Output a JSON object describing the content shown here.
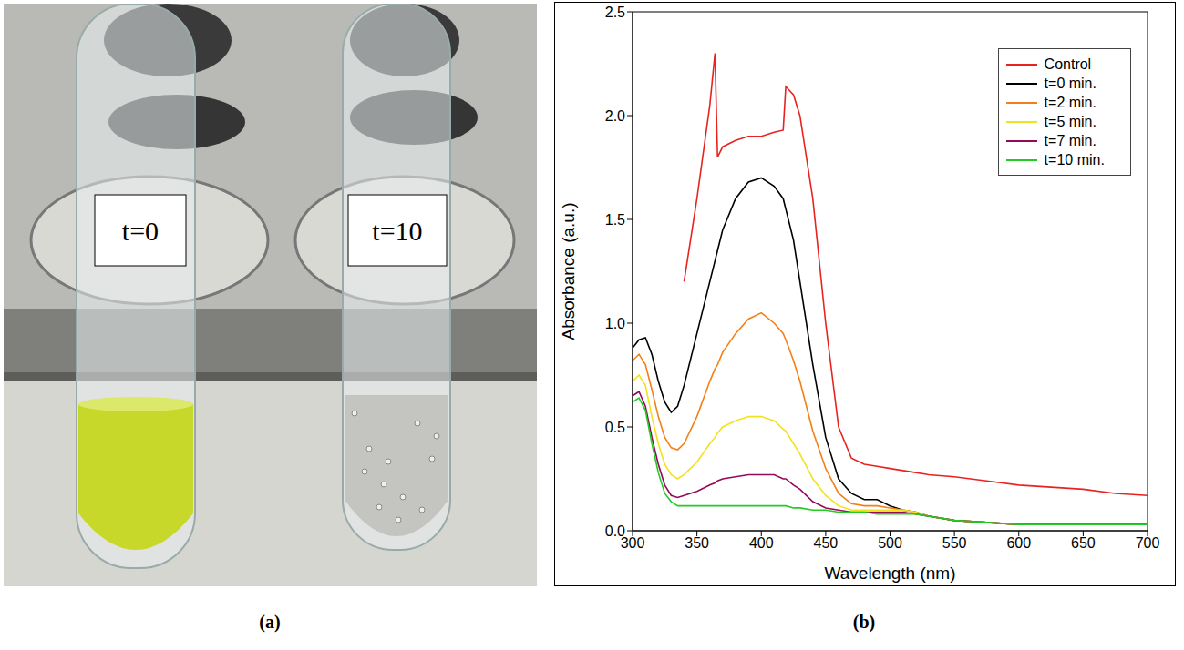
{
  "photo": {
    "panel": "(a)",
    "labels": [
      "t=0",
      "t=10"
    ]
  },
  "chart_data": {
    "panel": "(b)",
    "type": "line",
    "x_label": "Wavelength (nm)",
    "y_label": "Absorbance (a.u.)",
    "xlim": [
      300,
      700
    ],
    "xticks": [
      300,
      350,
      400,
      450,
      500,
      550,
      600,
      650,
      700
    ],
    "ylim": [
      0,
      2.5
    ],
    "yticks": [
      {
        "value": 0,
        "label": "0.0"
      },
      0.5,
      {
        "value": 1,
        "label": "1.0"
      },
      1.5,
      {
        "value": 2,
        "label": "2.0"
      },
      2.5
    ],
    "grid": false,
    "legend": "upper right",
    "x": [
      300,
      305,
      310,
      315,
      320,
      325,
      330,
      335,
      340,
      350,
      360,
      364,
      366,
      370,
      380,
      390,
      400,
      410,
      417,
      419,
      425,
      430,
      440,
      450,
      460,
      470,
      480,
      490,
      500,
      510,
      520,
      530,
      550,
      575,
      600,
      625,
      650,
      675,
      700
    ],
    "series": [
      {
        "name": "Control",
        "color": "#e8231f",
        "values": [
          null,
          null,
          null,
          null,
          null,
          null,
          null,
          null,
          1.2,
          1.6,
          2.05,
          2.3,
          1.8,
          1.85,
          1.88,
          1.9,
          1.9,
          1.92,
          1.93,
          2.14,
          2.1,
          2.0,
          1.6,
          1.0,
          0.5,
          0.35,
          0.32,
          0.31,
          0.3,
          0.29,
          0.28,
          0.27,
          0.26,
          0.24,
          0.22,
          0.21,
          0.2,
          0.18,
          0.17
        ]
      },
      {
        "name": "t=0 min.",
        "color": "#000000",
        "values": [
          0.88,
          0.92,
          0.93,
          0.85,
          0.72,
          0.62,
          0.57,
          0.6,
          0.7,
          0.95,
          1.2,
          1.3,
          1.35,
          1.45,
          1.6,
          1.68,
          1.7,
          1.66,
          1.6,
          1.55,
          1.4,
          1.2,
          0.8,
          0.45,
          0.25,
          0.18,
          0.15,
          0.15,
          0.12,
          0.1,
          0.09,
          0.07,
          0.05,
          0.04,
          0.03,
          0.03,
          0.03,
          0.03,
          0.03
        ]
      },
      {
        "name": "t=2 min.",
        "color": "#f57f17",
        "values": [
          0.82,
          0.85,
          0.8,
          0.68,
          0.55,
          0.45,
          0.4,
          0.39,
          0.42,
          0.55,
          0.72,
          0.78,
          0.8,
          0.86,
          0.95,
          1.02,
          1.05,
          1.0,
          0.95,
          0.92,
          0.82,
          0.72,
          0.48,
          0.3,
          0.18,
          0.13,
          0.12,
          0.12,
          0.11,
          0.1,
          0.09,
          0.07,
          0.05,
          0.04,
          0.03,
          0.03,
          0.03,
          0.03,
          0.03
        ]
      },
      {
        "name": "t=5 min.",
        "color": "#f2e21e",
        "values": [
          0.72,
          0.75,
          0.7,
          0.55,
          0.42,
          0.32,
          0.27,
          0.25,
          0.27,
          0.33,
          0.42,
          0.45,
          0.47,
          0.5,
          0.53,
          0.55,
          0.55,
          0.53,
          0.49,
          0.48,
          0.42,
          0.37,
          0.25,
          0.17,
          0.12,
          0.1,
          0.1,
          0.1,
          0.1,
          0.1,
          0.09,
          0.07,
          0.05,
          0.04,
          0.03,
          0.03,
          0.03,
          0.03,
          0.03
        ]
      },
      {
        "name": "t=7 min.",
        "color": "#94095a",
        "values": [
          0.65,
          0.67,
          0.6,
          0.45,
          0.32,
          0.22,
          0.17,
          0.16,
          0.17,
          0.19,
          0.22,
          0.23,
          0.24,
          0.25,
          0.26,
          0.27,
          0.27,
          0.27,
          0.25,
          0.25,
          0.22,
          0.2,
          0.14,
          0.11,
          0.1,
          0.09,
          0.09,
          0.09,
          0.09,
          0.09,
          0.08,
          0.07,
          0.05,
          0.04,
          0.03,
          0.03,
          0.03,
          0.03,
          0.03
        ]
      },
      {
        "name": "t=10 min.",
        "color": "#22cc22",
        "values": [
          0.62,
          0.64,
          0.58,
          0.42,
          0.28,
          0.18,
          0.14,
          0.12,
          0.12,
          0.12,
          0.12,
          0.12,
          0.12,
          0.12,
          0.12,
          0.12,
          0.12,
          0.12,
          0.12,
          0.12,
          0.11,
          0.11,
          0.1,
          0.1,
          0.09,
          0.09,
          0.09,
          0.08,
          0.08,
          0.08,
          0.08,
          0.07,
          0.05,
          0.04,
          0.03,
          0.03,
          0.03,
          0.03,
          0.03
        ]
      }
    ]
  }
}
